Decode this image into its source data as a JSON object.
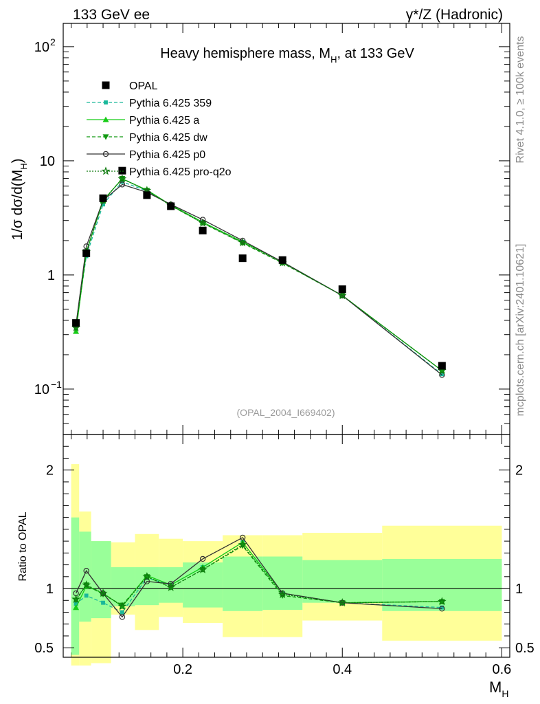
{
  "header": {
    "left": "133 GeV ee",
    "right": "γ*/Z (Hadronic)"
  },
  "side_labels": {
    "rivet": "Rivet 4.1.0, ≥ 100k events",
    "mcplots": "mcplots.cern.ch [arXiv:2401.10621]"
  },
  "chart_data": {
    "type": "line",
    "title": "Heavy hemisphere mass, M_H, at 133 GeV",
    "title_parts": [
      "Heavy hemisphere mass, M",
      "H",
      ", at 133 GeV"
    ],
    "analysis_tag": "(OPAL_2004_I669402)",
    "xlabel": "M_H",
    "xlabel_parts": [
      "M",
      "H"
    ],
    "ylabel": "1/σ dσ/d(M_H)",
    "ylabel_parts": [
      "1/σ  dσ/d(M",
      "H",
      ")"
    ],
    "xlim": [
      0.05,
      0.61
    ],
    "ylim": [
      0.04,
      160
    ],
    "yscale": "log",
    "xticks": [
      {
        "v": 0.2,
        "label": "0.2"
      },
      {
        "v": 0.4,
        "label": "0.4"
      },
      {
        "v": 0.6,
        "label": "0.6"
      }
    ],
    "yticks": [
      {
        "v": 0.1,
        "label": "10",
        "sup": "−1"
      },
      {
        "v": 1,
        "label": "1",
        "sup": ""
      },
      {
        "v": 10,
        "label": "10",
        "sup": ""
      },
      {
        "v": 100,
        "label": "10",
        "sup": "2"
      }
    ],
    "bins": [
      [
        0.06,
        0.07
      ],
      [
        0.07,
        0.085
      ],
      [
        0.085,
        0.11
      ],
      [
        0.11,
        0.14
      ],
      [
        0.14,
        0.17
      ],
      [
        0.17,
        0.2
      ],
      [
        0.2,
        0.25
      ],
      [
        0.25,
        0.3
      ],
      [
        0.3,
        0.35
      ],
      [
        0.35,
        0.45
      ],
      [
        0.45,
        0.6
      ]
    ],
    "x": [
      0.066,
      0.079,
      0.1,
      0.124,
      0.155,
      0.185,
      0.225,
      0.275,
      0.325,
      0.4,
      0.525
    ],
    "data": {
      "name": "OPAL",
      "values": [
        0.38,
        1.55,
        4.7,
        8.2,
        5.0,
        4.0,
        2.45,
        1.4,
        1.35,
        0.75,
        0.16
      ]
    },
    "series": [
      {
        "name": "Pythia 6.425 359",
        "color": "#1ab89a",
        "dash": "5,3",
        "marker": "smallsquare",
        "values": [
          0.35,
          1.46,
          4.15,
          6.55,
          5.45,
          4.1,
          2.9,
          1.95,
          1.3,
          0.66,
          0.135
        ]
      },
      {
        "name": "Pythia 6.425 a",
        "color": "#17cc17",
        "dash": "",
        "marker": "triangle",
        "values": [
          0.32,
          1.58,
          4.5,
          6.95,
          5.55,
          4.1,
          2.9,
          1.95,
          1.3,
          0.66,
          0.145
        ]
      },
      {
        "name": "Pythia 6.425 dw",
        "color": "#119911",
        "dash": "5,3",
        "marker": "triangle-down",
        "values": [
          0.34,
          1.6,
          4.45,
          7.0,
          5.5,
          4.05,
          2.85,
          1.9,
          1.27,
          0.66,
          0.145
        ]
      },
      {
        "name": "Pythia 6.425 p0",
        "color": "#333333",
        "dash": "",
        "marker": "circle",
        "values": [
          0.365,
          1.78,
          4.5,
          6.2,
          5.3,
          4.15,
          3.05,
          2.0,
          1.3,
          0.66,
          0.133
        ]
      },
      {
        "name": "Pythia 6.425 pro-q2o",
        "color": "#0d7a0d",
        "dash": "2,2",
        "marker": "star",
        "values": [
          0.345,
          1.6,
          4.5,
          6.95,
          5.5,
          4.05,
          2.85,
          1.92,
          1.28,
          0.66,
          0.145
        ]
      }
    ],
    "ratio": {
      "ylabel": "Ratio to OPAL",
      "ylim": [
        0.42,
        2.3
      ],
      "yticks": [
        {
          "v": 0.5,
          "label": "0.5"
        },
        {
          "v": 1,
          "label": "1"
        },
        {
          "v": 2,
          "label": "2"
        }
      ],
      "band_green": [
        [
          0.44,
          1.6
        ],
        [
          0.72,
          1.48
        ],
        [
          0.75,
          1.4
        ],
        [
          0.85,
          1.18
        ],
        [
          0.86,
          1.18
        ],
        [
          0.88,
          1.18
        ],
        [
          0.84,
          1.22
        ],
        [
          0.81,
          1.27
        ],
        [
          0.82,
          1.27
        ],
        [
          0.88,
          1.24
        ],
        [
          0.81,
          1.25
        ]
      ],
      "band_yellow": [
        [
          0.35,
          2.05
        ],
        [
          0.35,
          1.65
        ],
        [
          0.37,
          1.4
        ],
        [
          0.78,
          1.39
        ],
        [
          0.65,
          1.46
        ],
        [
          0.76,
          1.42
        ],
        [
          0.71,
          1.4
        ],
        [
          0.59,
          1.45
        ],
        [
          0.59,
          1.45
        ],
        [
          0.73,
          1.47
        ],
        [
          0.56,
          1.53
        ]
      ],
      "series_values": [
        [
          0.87,
          0.94,
          0.88,
          0.8,
          1.09,
          1.03,
          1.18,
          1.39,
          0.96,
          0.88,
          0.84
        ],
        [
          0.84,
          1.02,
          0.96,
          0.85,
          1.11,
          1.03,
          1.18,
          1.39,
          0.96,
          0.88,
          0.89
        ],
        [
          0.9,
          1.03,
          0.95,
          0.86,
          1.1,
          1.01,
          1.16,
          1.36,
          0.94,
          0.88,
          0.89
        ],
        [
          0.96,
          1.15,
          0.96,
          0.76,
          1.06,
          1.04,
          1.25,
          1.43,
          0.96,
          0.88,
          0.83
        ],
        [
          0.91,
          1.03,
          0.96,
          0.85,
          1.1,
          1.01,
          1.16,
          1.37,
          0.95,
          0.88,
          0.89
        ]
      ]
    }
  }
}
